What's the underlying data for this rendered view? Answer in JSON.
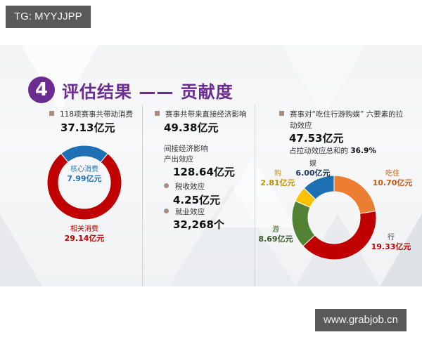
{
  "watermarks": {
    "top": "TG: MYYJJPP",
    "bottom": "www.grabjob.cn"
  },
  "slide": {
    "section_number": "4",
    "title": "评估结果 —— 贡献度",
    "accent_color": "#6a2c8f"
  },
  "col1": {
    "label": "118项赛事共带动消费",
    "total": "37.13亿元"
  },
  "col2": {
    "direct_label": "赛事共带来直接经济影响",
    "direct_value": "49.38亿元",
    "indirect_heading": "间接经济影响",
    "output_label": "产出效应",
    "output_value": "128.64亿元",
    "tax_label": "税收效应",
    "tax_value": "4.25亿元",
    "jobs_label": "就业效应",
    "jobs_value": "32,268个"
  },
  "col3": {
    "label_line1": "赛事对“吃住行游购娱” 六要素的拉",
    "label_line2": "动效应",
    "total": "47.53亿元",
    "share_prefix": "占拉动效应总和的 ",
    "share_value": "36.9%"
  },
  "chart_data": [
    {
      "type": "pie",
      "variant": "donut",
      "title": "118项赛事共带动消费 37.13亿元",
      "categories": [
        "核心消费",
        "相关消费"
      ],
      "values": [
        7.99,
        29.14
      ],
      "unit": "亿元",
      "labels": [
        "7.99亿元",
        "29.14亿元"
      ],
      "colors": [
        "#1f6fb5",
        "#c00000"
      ]
    },
    {
      "type": "pie",
      "variant": "donut",
      "title": "赛事对“吃住行游购娱”六要素的拉动效应 47.53亿元",
      "categories": [
        "吃住",
        "行",
        "游",
        "购",
        "娱"
      ],
      "values": [
        10.7,
        19.33,
        8.69,
        2.81,
        6.0
      ],
      "unit": "亿元",
      "labels": [
        "10.70亿元",
        "19.33亿元",
        "8.69亿元",
        "2.81亿元",
        "6.00亿元"
      ],
      "colors": [
        "#ed7d31",
        "#c00000",
        "#548235",
        "#ffc000",
        "#1f6fb5"
      ],
      "label_colors": [
        "#c55a11",
        "#c00000",
        "#375623",
        "#bf9000",
        "#1f3864"
      ]
    }
  ]
}
